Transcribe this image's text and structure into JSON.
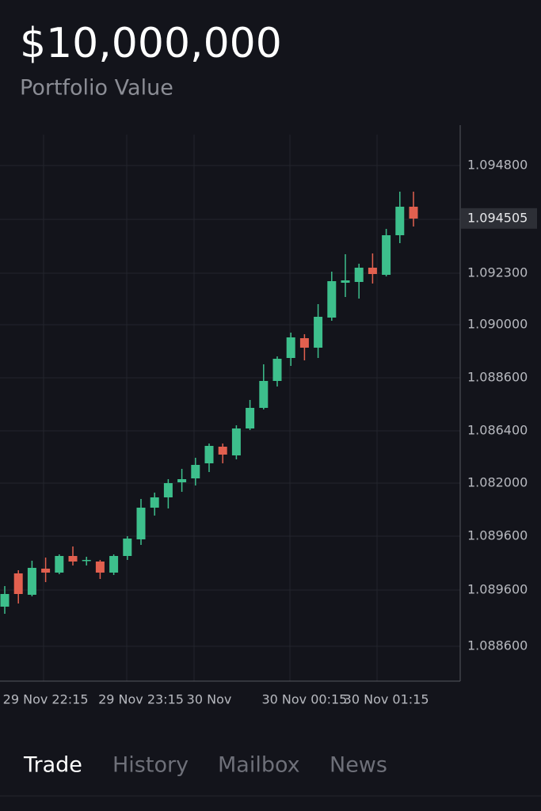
{
  "header": {
    "value": "$10,000,000",
    "label": "Portfolio Value"
  },
  "chart_data": {
    "type": "candlestick",
    "categories": [
      null,
      null,
      null,
      "29 Nov 22:15",
      null,
      null,
      null,
      null,
      null,
      null,
      "29 Nov 23:15",
      null,
      null,
      null,
      null,
      "30 Nov",
      null,
      null,
      null,
      null,
      null,
      null,
      "30 Nov 00:15",
      null,
      null,
      null,
      null,
      null,
      "30 Nov 01:15",
      null,
      null
    ],
    "open": [
      1.08225,
      1.0833,
      1.082625,
      1.08345,
      1.083325,
      1.08385,
      1.0837,
      1.083675,
      1.083325,
      1.08385,
      1.084375,
      1.085375,
      1.0857,
      1.086175,
      1.0863,
      1.086775,
      1.0873,
      1.087025,
      1.087875,
      1.088525,
      1.089375,
      1.0901,
      1.090725,
      1.090425,
      1.091375,
      1.092475,
      1.0925,
      1.09295,
      1.092725,
      1.093975,
      1.094875
    ],
    "high": [
      1.0829,
      1.0834,
      1.0837,
      1.0838,
      1.0839,
      1.08415,
      1.083825,
      1.083725,
      1.0839,
      1.084475,
      1.08565,
      1.08585,
      1.086275,
      1.0866,
      1.08695,
      1.0874,
      1.0874,
      1.087975,
      1.088775,
      1.0899,
      1.09015,
      1.0909,
      1.09085,
      1.0918,
      1.092825,
      1.093375,
      1.093075,
      1.0934,
      1.094175,
      1.09535,
      1.09535
    ],
    "low": [
      1.082025,
      1.08235,
      1.082575,
      1.083025,
      1.083275,
      1.08355,
      1.08355,
      1.083125,
      1.08325,
      1.083725,
      1.0842,
      1.085125,
      1.08535,
      1.085875,
      1.086075,
      1.0865,
      1.086775,
      1.0869,
      1.087825,
      1.088475,
      1.0892,
      1.08985,
      1.090025,
      1.0901,
      1.091275,
      1.092025,
      1.091975,
      1.09245,
      1.092675,
      1.093725,
      1.09425
    ],
    "close": [
      1.08265,
      1.08265,
      1.083475,
      1.083325,
      1.08385,
      1.083675,
      1.083725,
      1.083325,
      1.08385,
      1.0844,
      1.085375,
      1.0857,
      1.08615,
      1.086275,
      1.086725,
      1.087325,
      1.08705,
      1.087875,
      1.088525,
      1.089375,
      1.090075,
      1.09075,
      1.090425,
      1.0914,
      1.092525,
      1.09255,
      1.09295,
      1.09275,
      1.093975,
      1.094875,
      1.0945
    ],
    "ylim": [
      1.0799,
      1.0974
    ],
    "y_axis_labels": [
      "1.094800",
      "1.092300",
      "1.090000",
      "1.088600",
      "1.086400",
      "1.082000",
      "1.089600",
      "1.089600",
      "1.088600"
    ],
    "last_price": 1.094505,
    "up_color": "#3dbf8c",
    "down_color": "#e2604f",
    "grid": true
  },
  "tabs": [
    {
      "label": "Trade",
      "active": true
    },
    {
      "label": "History",
      "active": false
    },
    {
      "label": "Mailbox",
      "active": false
    },
    {
      "label": "News",
      "active": false
    }
  ]
}
